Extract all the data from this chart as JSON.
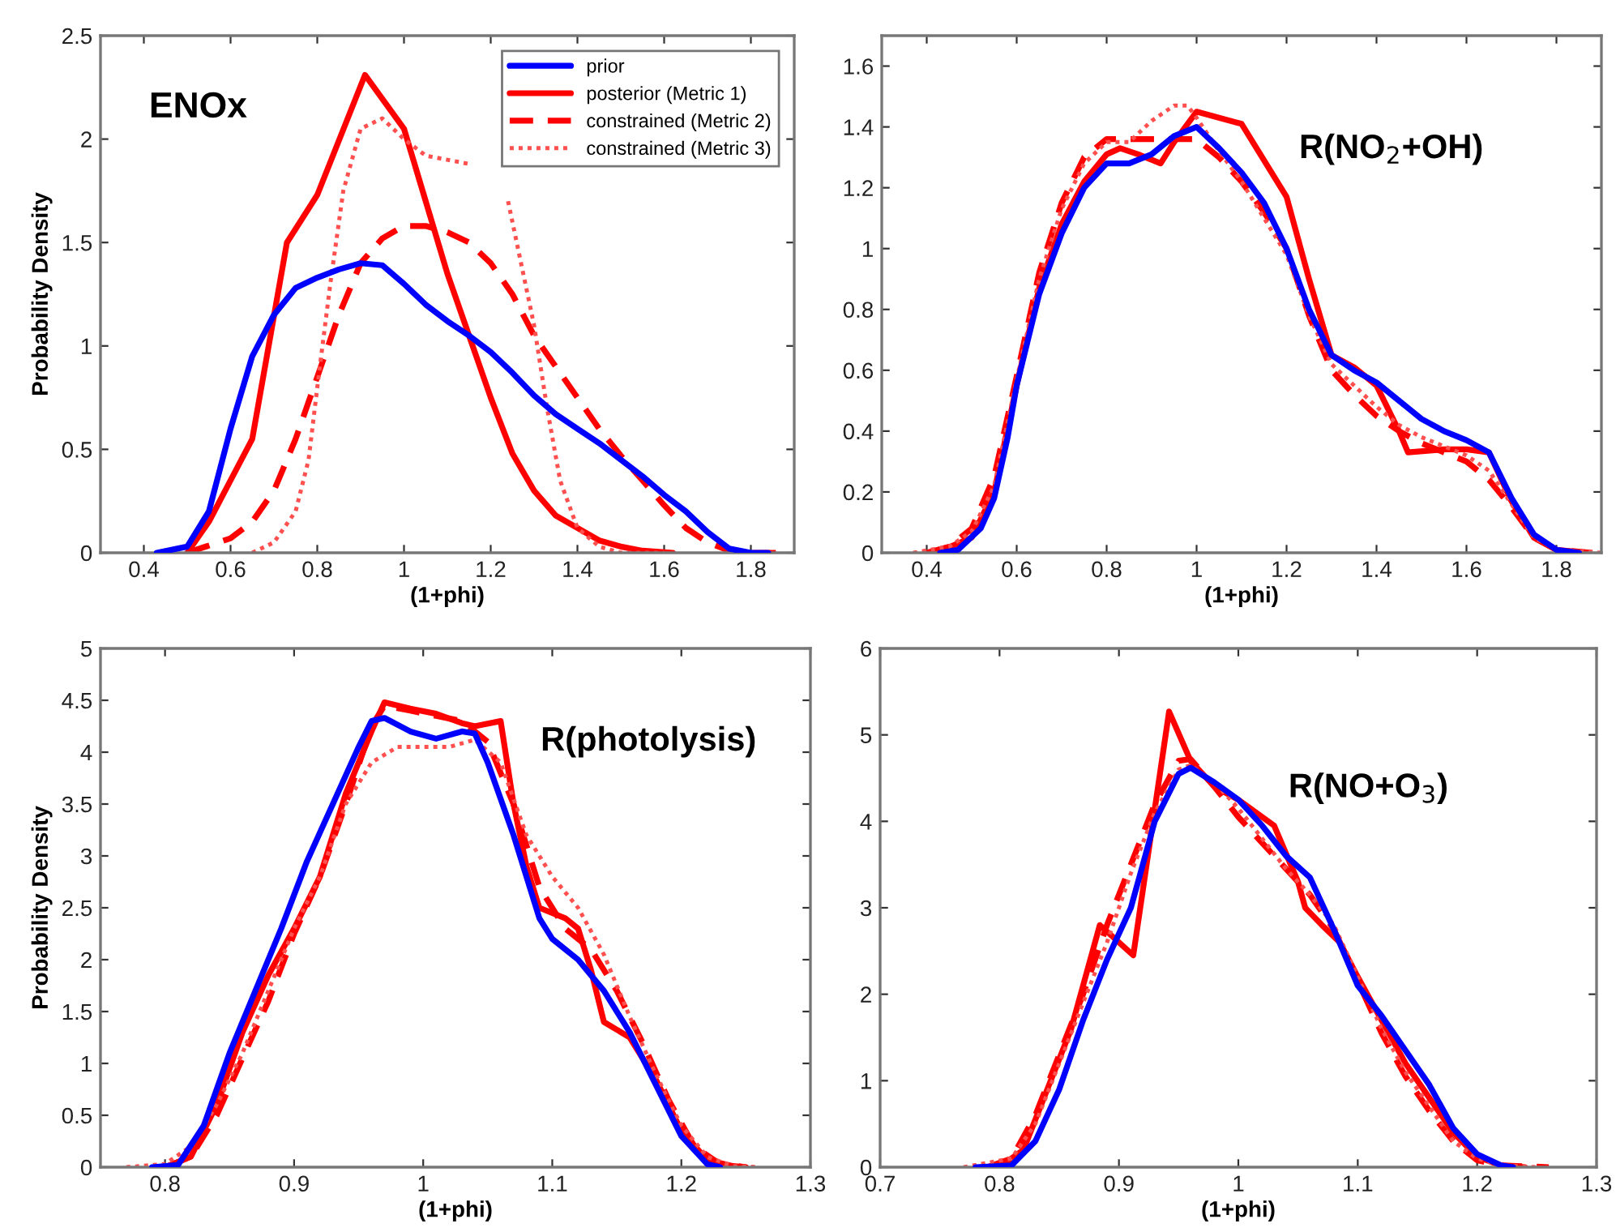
{
  "chart_data": [
    {
      "type": "line",
      "xlabel": "(1+phi)",
      "ylabel": "Probability Density",
      "annotations": [
        "ENOx"
      ],
      "xlim": [
        0.3,
        1.9
      ],
      "ylim": [
        0,
        2.5
      ],
      "xticks": [
        0.4,
        0.6,
        0.8,
        1,
        1.2,
        1.4,
        1.6,
        1.8
      ],
      "yticks": [
        0,
        0.5,
        1,
        1.5,
        2,
        2.5
      ],
      "grid": false,
      "legend": "top right",
      "series": [
        {
          "name": "prior",
          "color": "#0000ff",
          "line_style": "solid",
          "x": [
            0.43,
            0.5,
            0.55,
            0.6,
            0.65,
            0.7,
            0.75,
            0.8,
            0.85,
            0.9,
            0.95,
            1.0,
            1.05,
            1.1,
            1.15,
            1.2,
            1.25,
            1.3,
            1.35,
            1.4,
            1.45,
            1.5,
            1.55,
            1.6,
            1.65,
            1.7,
            1.75,
            1.8,
            1.84
          ],
          "values": [
            0,
            0.03,
            0.2,
            0.6,
            0.95,
            1.15,
            1.28,
            1.33,
            1.37,
            1.4,
            1.39,
            1.3,
            1.2,
            1.12,
            1.05,
            0.97,
            0.87,
            0.76,
            0.67,
            0.6,
            0.53,
            0.45,
            0.37,
            0.28,
            0.2,
            0.1,
            0.02,
            0,
            0
          ]
        },
        {
          "name": "posterior (Metric 1)",
          "color": "#ff0000",
          "line_style": "solid",
          "x": [
            0.5,
            0.55,
            0.6,
            0.65,
            0.73,
            0.8,
            0.91,
            1.0,
            1.05,
            1.1,
            1.15,
            1.2,
            1.25,
            1.3,
            1.35,
            1.4,
            1.45,
            1.5,
            1.55,
            1.62
          ],
          "values": [
            0,
            0.15,
            0.35,
            0.55,
            1.5,
            1.73,
            2.31,
            2.05,
            1.7,
            1.35,
            1.05,
            0.75,
            0.48,
            0.3,
            0.18,
            0.12,
            0.06,
            0.03,
            0.01,
            0
          ]
        },
        {
          "name": "constrained (Metric 2)",
          "color": "#ff0000",
          "line_style": "dashed",
          "x": [
            0.5,
            0.6,
            0.65,
            0.7,
            0.75,
            0.8,
            0.85,
            0.9,
            0.95,
            1.0,
            1.05,
            1.1,
            1.15,
            1.2,
            1.25,
            1.3,
            1.35,
            1.4,
            1.45,
            1.5,
            1.55,
            1.6,
            1.65,
            1.7,
            1.75,
            1.8,
            1.86
          ],
          "values": [
            0,
            0.07,
            0.15,
            0.3,
            0.55,
            0.85,
            1.15,
            1.4,
            1.52,
            1.58,
            1.58,
            1.55,
            1.5,
            1.4,
            1.25,
            1.05,
            0.9,
            0.75,
            0.6,
            0.47,
            0.35,
            0.23,
            0.12,
            0.05,
            0.01,
            0,
            0
          ]
        },
        {
          "name": "constrained (Metric 3)",
          "color": "#ff5050",
          "line_style": "dotted",
          "x": [
            0.65,
            0.7,
            0.75,
            0.78,
            0.8,
            0.83,
            0.86,
            0.9,
            0.95,
            1.0,
            1.05,
            1.1,
            1.15,
            1.2,
            1.24,
            1.27,
            1.3,
            1.33,
            1.36,
            1.4,
            1.45,
            1.5,
            1.6
          ],
          "values": [
            0,
            0.05,
            0.2,
            0.45,
            0.8,
            1.3,
            1.75,
            2.05,
            2.1,
            2.0,
            1.92,
            1.9,
            1.88,
            null,
            1.7,
            1.4,
            1.1,
            0.7,
            0.35,
            0.12,
            0.03,
            0,
            0
          ]
        }
      ]
    },
    {
      "type": "line",
      "xlabel": "(1+phi)",
      "annotations": [
        "R(NO$_{2}$+OH)"
      ],
      "xlim": [
        0.3,
        1.9
      ],
      "ylim": [
        0,
        1.7
      ],
      "xticks": [
        0.4,
        0.6,
        0.8,
        1,
        1.2,
        1.4,
        1.6,
        1.8
      ],
      "yticks": [
        0,
        0.2,
        0.4,
        0.6,
        0.8,
        1,
        1.2,
        1.4,
        1.6
      ],
      "grid": false,
      "series": [
        {
          "color": "#0000ff",
          "line_style": "solid",
          "x": [
            0.43,
            0.47,
            0.52,
            0.55,
            0.58,
            0.6,
            0.65,
            0.7,
            0.75,
            0.8,
            0.85,
            0.9,
            0.95,
            1.0,
            1.05,
            1.1,
            1.15,
            1.2,
            1.25,
            1.3,
            1.35,
            1.4,
            1.45,
            1.5,
            1.55,
            1.6,
            1.65,
            1.7,
            1.75,
            1.8,
            1.85
          ],
          "values": [
            0,
            0.01,
            0.08,
            0.18,
            0.38,
            0.55,
            0.85,
            1.05,
            1.2,
            1.28,
            1.28,
            1.31,
            1.37,
            1.4,
            1.33,
            1.25,
            1.15,
            1.0,
            0.8,
            0.65,
            0.6,
            0.56,
            0.5,
            0.44,
            0.4,
            0.37,
            0.33,
            0.18,
            0.06,
            0.01,
            0
          ]
        },
        {
          "color": "#ff0000",
          "line_style": "solid",
          "x": [
            0.42,
            0.5,
            0.55,
            0.6,
            0.65,
            0.7,
            0.75,
            0.8,
            0.83,
            0.87,
            0.92,
            0.95,
            1.0,
            1.1,
            1.2,
            1.25,
            1.3,
            1.35,
            1.4,
            1.45,
            1.47,
            1.55,
            1.6,
            1.65,
            1.7,
            1.75,
            1.8,
            1.87
          ],
          "values": [
            0,
            0.05,
            0.2,
            0.55,
            0.87,
            1.08,
            1.22,
            1.31,
            1.33,
            1.31,
            1.28,
            1.35,
            1.45,
            1.41,
            1.17,
            0.9,
            0.65,
            0.61,
            0.55,
            0.4,
            0.33,
            0.34,
            0.34,
            0.33,
            0.17,
            0.05,
            0.01,
            0
          ]
        },
        {
          "color": "#ff0000",
          "line_style": "dashed",
          "x": [
            0.4,
            0.45,
            0.5,
            0.55,
            0.6,
            0.65,
            0.7,
            0.75,
            0.8,
            0.85,
            0.9,
            0.95,
            1.0,
            1.05,
            1.1,
            1.15,
            1.2,
            1.25,
            1.3,
            1.35,
            1.4,
            1.45,
            1.5,
            1.55,
            1.6,
            1.65,
            1.7,
            1.75,
            1.8,
            1.88
          ],
          "values": [
            0,
            0.02,
            0.08,
            0.25,
            0.58,
            0.92,
            1.15,
            1.3,
            1.36,
            1.36,
            1.36,
            1.36,
            1.36,
            1.3,
            1.22,
            1.12,
            1.0,
            0.78,
            0.6,
            0.52,
            0.45,
            0.4,
            0.36,
            0.33,
            0.3,
            0.24,
            0.15,
            0.05,
            0.01,
            0
          ]
        },
        {
          "color": "#ff5050",
          "line_style": "dotted",
          "x": [
            0.37,
            0.45,
            0.5,
            0.55,
            0.6,
            0.65,
            0.7,
            0.75,
            0.8,
            0.85,
            0.9,
            0.95,
            0.98,
            1.0,
            1.05,
            1.1,
            1.15,
            1.2,
            1.25,
            1.3,
            1.35,
            1.4,
            1.45,
            1.5,
            1.55,
            1.6,
            1.65,
            1.7,
            1.75,
            1.8,
            1.9
          ],
          "values": [
            0,
            0.02,
            0.07,
            0.22,
            0.57,
            0.9,
            1.13,
            1.28,
            1.35,
            1.35,
            1.42,
            1.47,
            1.47,
            1.43,
            1.32,
            1.22,
            1.1,
            0.98,
            0.78,
            0.62,
            0.55,
            0.48,
            0.42,
            0.38,
            0.35,
            0.32,
            0.27,
            0.16,
            0.05,
            0.01,
            0
          ]
        }
      ]
    },
    {
      "type": "line",
      "xlabel": "(1+phi)",
      "ylabel": "Probability Density",
      "annotations": [
        "R(photolysis)"
      ],
      "xlim": [
        0.75,
        1.3
      ],
      "ylim": [
        0,
        5
      ],
      "xticks": [
        0.8,
        0.9,
        1,
        1.1,
        1.2,
        1.3
      ],
      "yticks": [
        0,
        0.5,
        1,
        1.5,
        2,
        2.5,
        3,
        3.5,
        4,
        4.5,
        5
      ],
      "grid": false,
      "series": [
        {
          "color": "#0000ff",
          "line_style": "solid",
          "x": [
            0.79,
            0.81,
            0.83,
            0.85,
            0.87,
            0.89,
            0.91,
            0.93,
            0.95,
            0.96,
            0.97,
            0.99,
            1.01,
            1.03,
            1.04,
            1.05,
            1.07,
            1.09,
            1.1,
            1.12,
            1.14,
            1.16,
            1.18,
            1.2,
            1.22,
            1.23
          ],
          "values": [
            0,
            0.02,
            0.4,
            1.1,
            1.7,
            2.3,
            2.95,
            3.5,
            4.05,
            4.3,
            4.33,
            4.2,
            4.13,
            4.2,
            4.18,
            3.9,
            3.2,
            2.4,
            2.2,
            2.0,
            1.7,
            1.3,
            0.8,
            0.3,
            0.03,
            0
          ]
        },
        {
          "color": "#ff0000",
          "line_style": "solid",
          "x": [
            0.8,
            0.82,
            0.84,
            0.86,
            0.88,
            0.9,
            0.92,
            0.94,
            0.96,
            0.97,
            0.99,
            1.01,
            1.03,
            1.04,
            1.06,
            1.07,
            1.08,
            1.09,
            1.11,
            1.12,
            1.13,
            1.14,
            1.16,
            1.18,
            1.2,
            1.22,
            1.24,
            1.25
          ],
          "values": [
            0,
            0.1,
            0.6,
            1.3,
            1.85,
            2.3,
            2.8,
            3.6,
            4.2,
            4.48,
            4.42,
            4.37,
            4.28,
            4.25,
            4.3,
            3.5,
            2.9,
            2.5,
            2.4,
            2.3,
            1.9,
            1.4,
            1.25,
            0.85,
            0.35,
            0.07,
            0.01,
            0
          ]
        },
        {
          "color": "#ff0000",
          "line_style": "dashed",
          "x": [
            0.8,
            0.82,
            0.84,
            0.86,
            0.88,
            0.9,
            0.92,
            0.94,
            0.96,
            0.97,
            0.99,
            1.01,
            1.03,
            1.05,
            1.07,
            1.09,
            1.11,
            1.13,
            1.15,
            1.17,
            1.19,
            1.21,
            1.23,
            1.25
          ],
          "values": [
            0,
            0.1,
            0.5,
            1.05,
            1.6,
            2.25,
            2.8,
            3.5,
            4.25,
            4.45,
            4.4,
            4.35,
            4.3,
            4.1,
            3.5,
            2.7,
            2.3,
            2.1,
            1.7,
            1.2,
            0.65,
            0.2,
            0.03,
            0
          ]
        },
        {
          "color": "#ff5050",
          "line_style": "dotted",
          "x": [
            0.77,
            0.8,
            0.82,
            0.84,
            0.86,
            0.88,
            0.9,
            0.92,
            0.94,
            0.96,
            0.98,
            1.0,
            1.02,
            1.04,
            1.06,
            1.08,
            1.1,
            1.12,
            1.14,
            1.16,
            1.18,
            1.2,
            1.22,
            1.24,
            1.26
          ],
          "values": [
            0,
            0.03,
            0.2,
            0.6,
            1.1,
            1.7,
            2.3,
            2.8,
            3.5,
            3.9,
            4.05,
            4.05,
            4.05,
            4.12,
            3.9,
            3.2,
            2.8,
            2.5,
            2.05,
            1.45,
            0.9,
            0.4,
            0.1,
            0.01,
            0
          ]
        }
      ]
    },
    {
      "type": "line",
      "xlabel": "(1+phi)",
      "annotations": [
        "R(NO+O$_{3}$)"
      ],
      "xlim": [
        0.7,
        1.3
      ],
      "ylim": [
        0,
        6
      ],
      "xticks": [
        0.7,
        0.8,
        0.9,
        1,
        1.1,
        1.2,
        1.3
      ],
      "yticks": [
        0,
        1,
        2,
        3,
        4,
        5,
        6
      ],
      "grid": false,
      "series": [
        {
          "color": "#0000ff",
          "line_style": "solid",
          "x": [
            0.78,
            0.81,
            0.83,
            0.85,
            0.87,
            0.89,
            0.91,
            0.93,
            0.95,
            0.96,
            0.98,
            1.0,
            1.02,
            1.04,
            1.06,
            1.08,
            1.1,
            1.12,
            1.14,
            1.16,
            1.18,
            1.2,
            1.22,
            1.23
          ],
          "values": [
            0,
            0.02,
            0.3,
            0.9,
            1.7,
            2.4,
            3.0,
            4.0,
            4.55,
            4.62,
            4.45,
            4.25,
            3.95,
            3.6,
            3.35,
            2.75,
            2.1,
            1.75,
            1.35,
            0.95,
            0.45,
            0.15,
            0.02,
            0
          ]
        },
        {
          "color": "#ff0000",
          "line_style": "solid",
          "x": [
            0.8,
            0.82,
            0.84,
            0.86,
            0.884,
            0.912,
            0.942,
            0.96,
            0.98,
            1.0,
            1.03,
            1.05,
            1.056,
            1.07,
            1.085,
            1.1,
            1.12,
            1.14,
            1.16,
            1.18,
            1.2,
            1.22,
            1.24
          ],
          "values": [
            0,
            0.2,
            0.9,
            1.6,
            2.8,
            2.45,
            5.27,
            4.7,
            4.4,
            4.25,
            3.95,
            3.3,
            3.0,
            2.8,
            2.6,
            2.2,
            1.7,
            1.2,
            0.8,
            0.4,
            0.12,
            0.02,
            0
          ]
        },
        {
          "color": "#ff0000",
          "line_style": "dashed",
          "x": [
            0.79,
            0.81,
            0.83,
            0.85,
            0.87,
            0.89,
            0.91,
            0.93,
            0.95,
            0.96,
            0.98,
            1.0,
            1.02,
            1.04,
            1.06,
            1.08,
            1.1,
            1.12,
            1.14,
            1.16,
            1.18,
            1.2,
            1.22,
            1.26
          ],
          "values": [
            0,
            0.1,
            0.6,
            1.3,
            2.0,
            2.8,
            3.5,
            4.2,
            4.7,
            4.72,
            4.4,
            4.05,
            3.75,
            3.45,
            3.15,
            2.75,
            2.15,
            1.55,
            1.05,
            0.65,
            0.3,
            0.08,
            0.02,
            0
          ]
        },
        {
          "color": "#ff5050",
          "line_style": "dotted",
          "x": [
            0.77,
            0.81,
            0.83,
            0.85,
            0.87,
            0.89,
            0.91,
            0.93,
            0.95,
            0.96,
            0.98,
            1.0,
            1.02,
            1.04,
            1.06,
            1.08,
            1.1,
            1.12,
            1.14,
            1.16,
            1.18,
            1.2,
            1.22,
            1.25
          ],
          "values": [
            0,
            0.1,
            0.5,
            1.2,
            1.9,
            2.6,
            3.4,
            4.1,
            4.6,
            4.65,
            4.45,
            4.15,
            3.8,
            3.45,
            3.15,
            2.8,
            2.2,
            1.6,
            1.1,
            0.7,
            0.3,
            0.1,
            0.02,
            0
          ]
        }
      ]
    }
  ]
}
